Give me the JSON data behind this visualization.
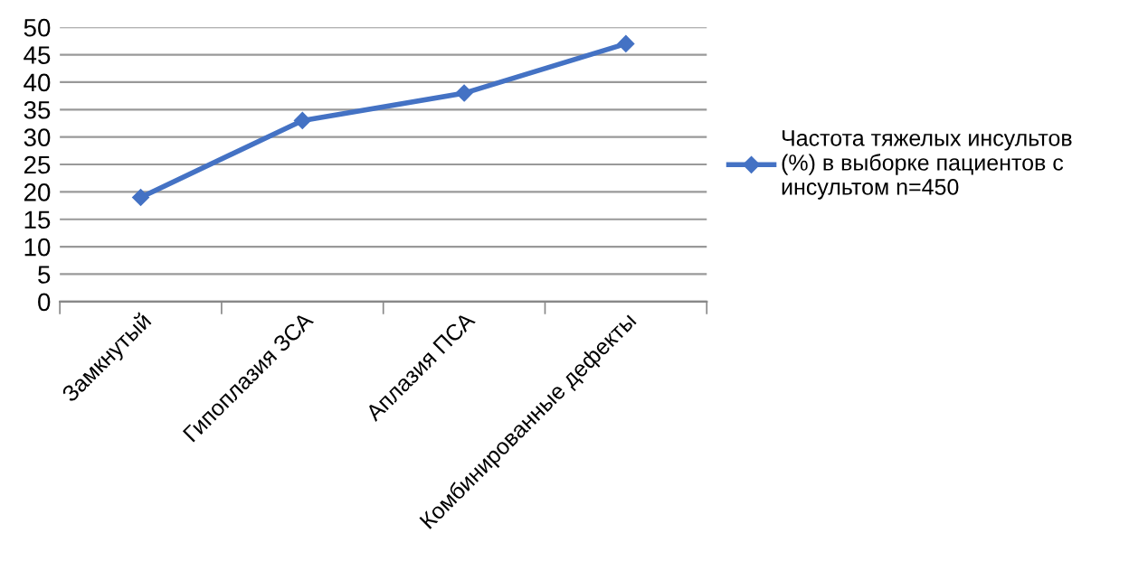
{
  "chart_data": {
    "type": "line",
    "categories": [
      "Замкнутый",
      "Гипоплазия ЗСА",
      "Аплазия ПСА",
      "Комбинированные дефекты"
    ],
    "series": [
      {
        "name": "Частота тяжелых инсультов\n(%) в выборке пациентов с\nинсультом n=450",
        "color": "#4472c4",
        "values": [
          19,
          33,
          38,
          47
        ]
      }
    ],
    "ylim": [
      0,
      50
    ],
    "yticks": [
      0,
      5,
      10,
      15,
      20,
      25,
      30,
      35,
      40,
      45,
      50
    ],
    "grid": "y",
    "legend": "right",
    "marker": "diamond",
    "line_style": "solid"
  }
}
